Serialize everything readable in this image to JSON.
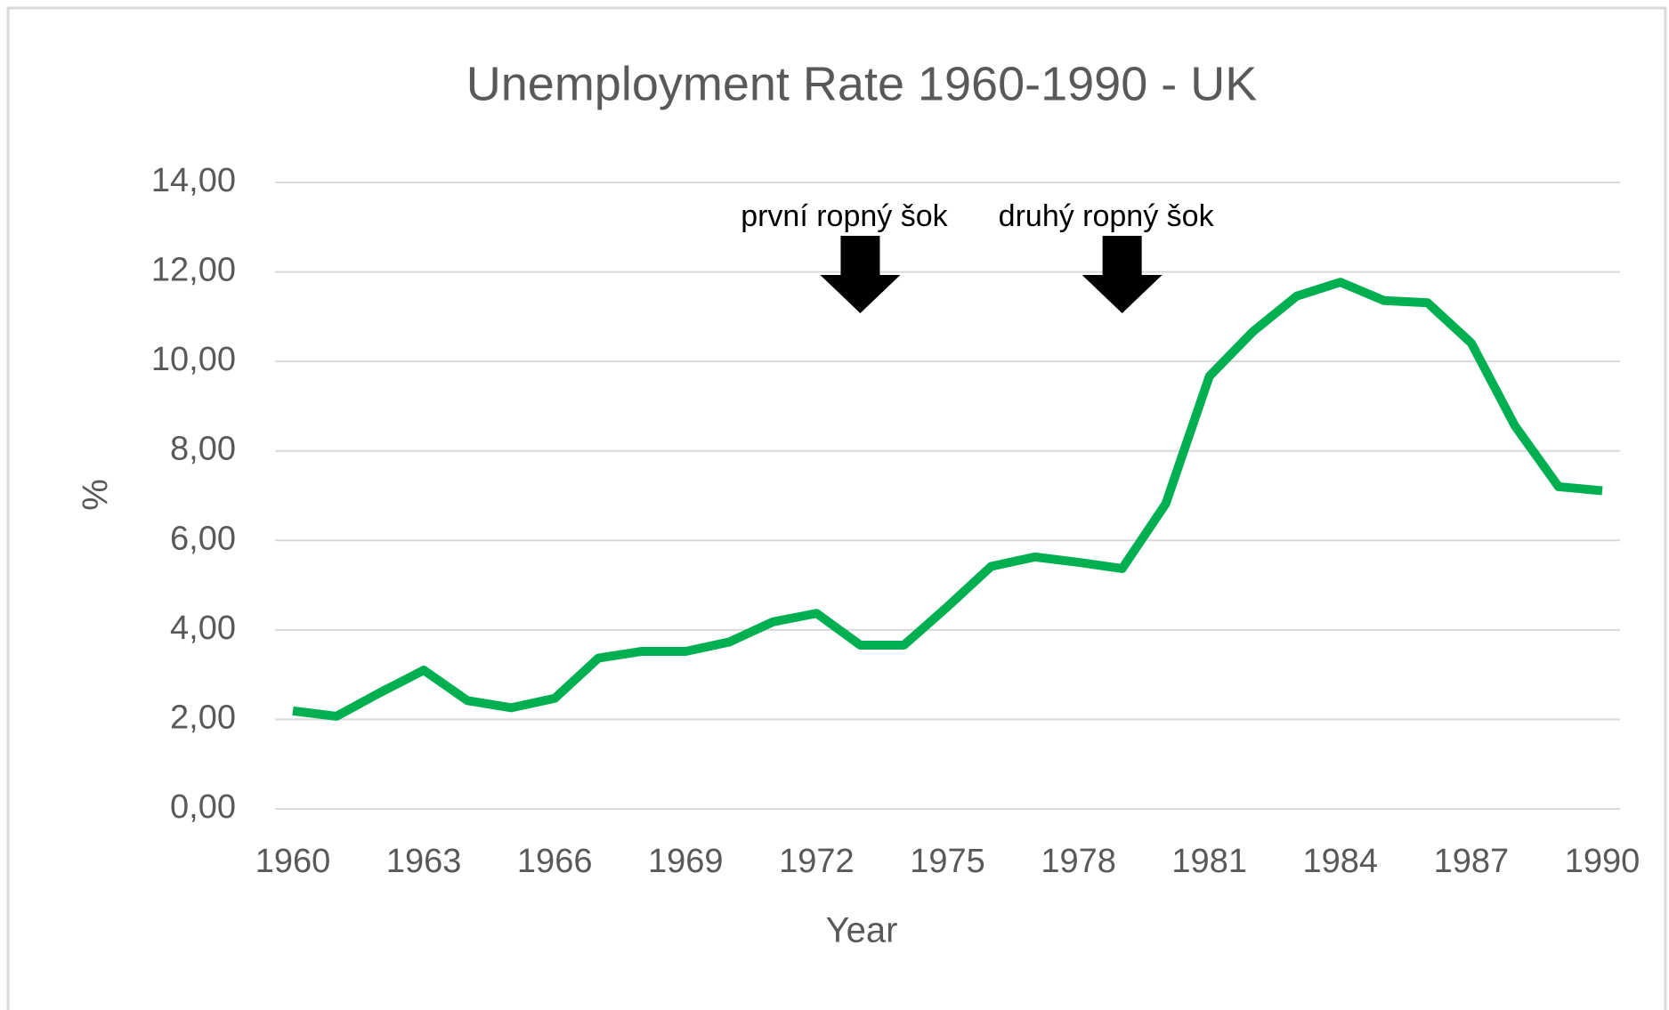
{
  "chart_data": {
    "type": "line",
    "title": "Unemployment Rate 1960-1990 - UK",
    "x_label": "Year",
    "y_label": "%",
    "x": [
      1960,
      1961,
      1962,
      1963,
      1964,
      1965,
      1966,
      1967,
      1968,
      1969,
      1970,
      1971,
      1972,
      1973,
      1974,
      1975,
      1976,
      1977,
      1978,
      1979,
      1980,
      1981,
      1982,
      1983,
      1984,
      1985,
      1986,
      1987,
      1988,
      1989,
      1990
    ],
    "series": [
      {
        "name": "Unemployment Rate",
        "color": "#00b050",
        "values": [
          2.19,
          2.07,
          2.6,
          3.1,
          2.42,
          2.26,
          2.47,
          3.37,
          3.52,
          3.52,
          3.73,
          4.18,
          4.37,
          3.66,
          3.66,
          4.52,
          5.42,
          5.63,
          5.51,
          5.37,
          6.82,
          9.67,
          10.67,
          11.46,
          11.77,
          11.36,
          11.31,
          10.41,
          8.56,
          7.2,
          7.11
        ]
      }
    ],
    "xlim": [
      1960,
      1990
    ],
    "xticks": [
      1960,
      1963,
      1966,
      1969,
      1972,
      1975,
      1978,
      1981,
      1984,
      1987,
      1990
    ],
    "ylim": [
      0,
      14
    ],
    "yticks": [
      {
        "value": 0,
        "label": "0,00"
      },
      {
        "value": 2,
        "label": "2,00"
      },
      {
        "value": 4,
        "label": "4,00"
      },
      {
        "value": 6,
        "label": "6,00"
      },
      {
        "value": 8,
        "label": "8,00"
      },
      {
        "value": 10,
        "label": "10,00"
      },
      {
        "value": 12,
        "label": "12,00"
      },
      {
        "value": 14,
        "label": "14,00"
      }
    ],
    "grid": true,
    "annotations": [
      {
        "text": "první ropný šok",
        "x": 1973
      },
      {
        "text": "druhý ropný šok",
        "x": 1979
      }
    ]
  }
}
